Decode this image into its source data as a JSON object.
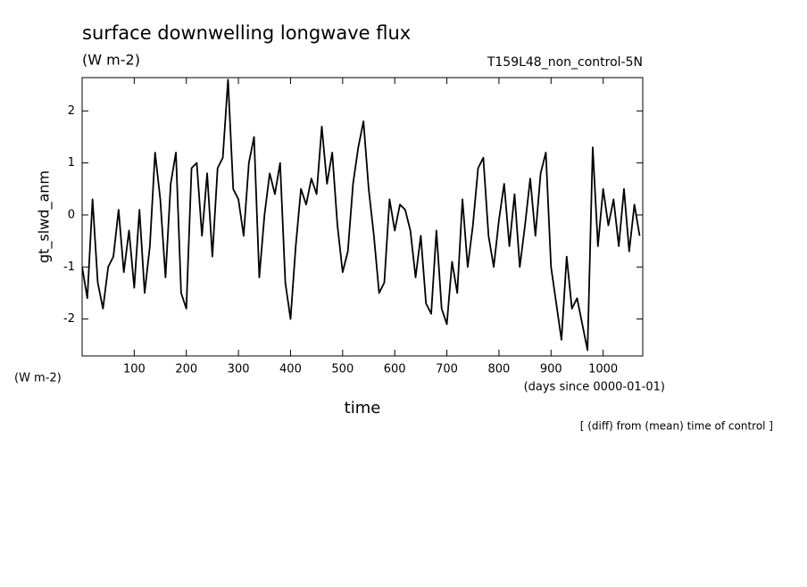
{
  "chart_data": {
    "type": "line",
    "title": "surface downwelling longwave flux",
    "subtitle": "(W m-2)",
    "run_label": "T159L48_non_control-5N",
    "y_label": "gt_slwd_anm",
    "y_units": "(W m-2)",
    "x_label": "time",
    "x_units": "(days since 0000-01-01)",
    "note": "[ (diff) from (mean) time of control ]",
    "xlim": [
      0,
      1076
    ],
    "ylim": [
      -2.71,
      2.64
    ],
    "xticks": [
      100,
      200,
      300,
      400,
      500,
      600,
      700,
      800,
      900,
      1000
    ],
    "yticks": [
      2,
      1,
      0,
      -1,
      -2
    ],
    "x": [
      0,
      10,
      20,
      30,
      40,
      50,
      60,
      70,
      80,
      90,
      100,
      110,
      120,
      130,
      140,
      150,
      160,
      170,
      180,
      190,
      200,
      210,
      220,
      230,
      240,
      250,
      260,
      270,
      280,
      290,
      300,
      310,
      320,
      330,
      340,
      350,
      360,
      370,
      380,
      390,
      400,
      410,
      420,
      430,
      440,
      450,
      460,
      470,
      480,
      490,
      500,
      510,
      520,
      530,
      540,
      550,
      560,
      570,
      580,
      590,
      600,
      610,
      620,
      630,
      640,
      650,
      660,
      670,
      680,
      690,
      700,
      710,
      720,
      730,
      740,
      750,
      760,
      770,
      780,
      790,
      800,
      810,
      820,
      830,
      840,
      850,
      860,
      870,
      880,
      890,
      900,
      910,
      920,
      930,
      940,
      950,
      960,
      970,
      980,
      990,
      1000,
      1010,
      1020,
      1030,
      1040,
      1050,
      1060,
      1070
    ],
    "series": [
      {
        "color": "#000000",
        "values": [
          -1.0,
          -1.6,
          0.3,
          -1.3,
          -1.8,
          -1.0,
          -0.8,
          0.1,
          -1.1,
          -0.3,
          -1.4,
          0.1,
          -1.5,
          -0.6,
          1.2,
          0.3,
          -1.2,
          0.6,
          1.2,
          -1.5,
          -1.8,
          0.9,
          1.0,
          -0.4,
          0.8,
          -0.8,
          0.9,
          1.1,
          2.6,
          0.5,
          0.3,
          -0.4,
          1.0,
          1.5,
          -1.2,
          0.0,
          0.8,
          0.4,
          1.0,
          -1.3,
          -2.0,
          -0.6,
          0.5,
          0.2,
          0.7,
          0.4,
          1.7,
          0.6,
          1.2,
          -0.2,
          -1.1,
          -0.7,
          0.6,
          1.3,
          1.8,
          0.5,
          -0.4,
          -1.5,
          -1.3,
          0.3,
          -0.3,
          0.2,
          0.1,
          -0.3,
          -1.2,
          -0.4,
          -1.7,
          -1.9,
          -0.3,
          -1.8,
          -2.1,
          -0.9,
          -1.5,
          0.3,
          -1.0,
          -0.2,
          0.9,
          1.1,
          -0.4,
          -1.0,
          -0.1,
          0.6,
          -0.6,
          0.4,
          -1.0,
          -0.2,
          0.7,
          -0.4,
          0.8,
          1.2,
          -1.0,
          -1.7,
          -2.4,
          -0.8,
          -1.8,
          -1.6,
          -2.1,
          -2.6,
          1.3,
          -0.6,
          0.5,
          -0.2,
          0.3,
          -0.6,
          0.5,
          -0.7,
          0.2,
          -0.4
        ]
      }
    ]
  }
}
